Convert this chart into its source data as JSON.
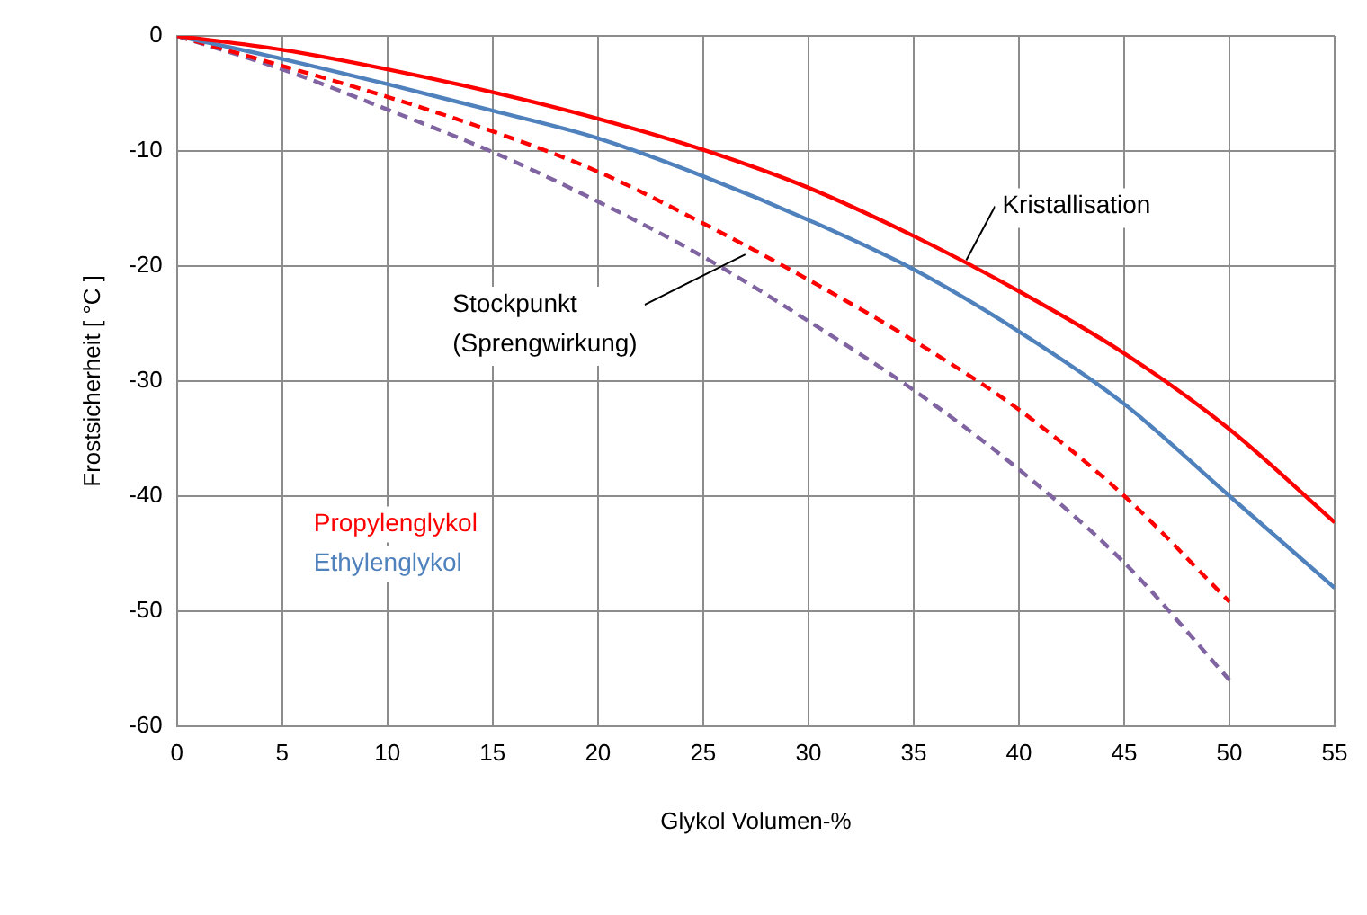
{
  "chart_data": {
    "type": "line",
    "xlabel": "Glykol Volumen-%",
    "ylabel": "Frostsicherheit [ °C ]",
    "x": [
      0,
      5,
      10,
      15,
      20,
      25,
      30,
      35,
      40,
      45,
      50,
      55
    ],
    "series": [
      {
        "name": "Propylenglykol",
        "color": "#ff0000",
        "values": [
          0,
          -1.2,
          -2.9,
          -4.9,
          -7.2,
          -9.9,
          -13.2,
          -17.4,
          -22.2,
          -27.6,
          -34.2,
          -42.3
        ]
      },
      {
        "name": "Ethylenglykol",
        "color": "#4f81bd",
        "values": [
          0,
          -2,
          -4.2,
          -6.5,
          -8.9,
          -12.2,
          -16,
          -20.3,
          -25.7,
          -32,
          -40,
          -48
        ]
      },
      {
        "color": "#ff0000",
        "line_style": "dashed",
        "values": [
          0,
          -2.6,
          -5.3,
          -8.3,
          -11.8,
          -16.3,
          -21.2,
          -26.5,
          -32.5,
          -40,
          -49.2,
          null
        ]
      },
      {
        "color": "#8064a2",
        "line_style": "dashed",
        "values": [
          0,
          -2.9,
          -6.4,
          -10.1,
          -14.4,
          -19.2,
          -24.8,
          -30.8,
          -37.7,
          -45.8,
          -56,
          null
        ]
      }
    ],
    "xlim": [
      0,
      55
    ],
    "xticks": [
      0,
      5,
      10,
      15,
      20,
      25,
      30,
      35,
      40,
      45,
      50,
      55
    ],
    "ylim": [
      -60,
      0
    ],
    "yticks": [
      -60,
      -50,
      -40,
      -30,
      -20,
      -10,
      0
    ],
    "grid": true,
    "legend": "bottom left",
    "marker": "none",
    "line_style": "solid",
    "annotations": [
      {
        "text": "Kristallisation",
        "x": 37.5,
        "y": -19.5
      },
      {
        "text": "Stockpunkt\n(Sprengwirkung)",
        "x": 27,
        "y": -19
      }
    ]
  }
}
